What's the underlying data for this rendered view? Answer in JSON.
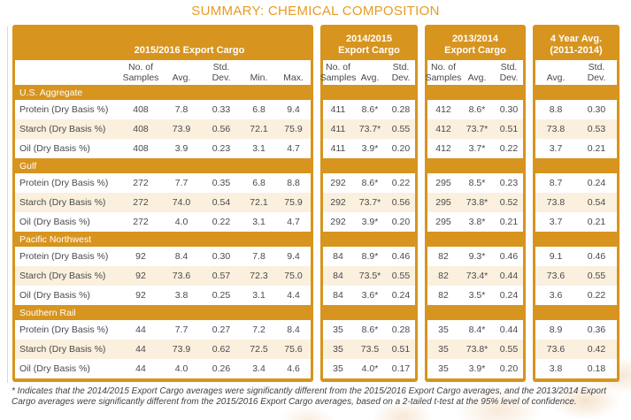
{
  "title": "SUMMARY: CHEMICAL COMPOSITION",
  "footnote": "* Indicates that the 2014/2015 Export Cargo averages were significantly different from the 2015/2016 Export Cargo averages, and the 2013/2014 Export Cargo averages were significantly different from the 2015/2016 Export Cargo averages, based on a 2-tailed t-test at the 95% level of confidence.",
  "colors": {
    "accent_orange": "#D7941E",
    "title_orange": "#E89B25",
    "row_alt_cream": "#FAF0DD",
    "text_gray": "#4A4A4C"
  },
  "table": {
    "groups": [
      {
        "name": "2015-2016-export-cargo",
        "header_lines": [
          "2015/2016 Export Cargo"
        ],
        "columns": [
          [
            "No. of",
            "Samples"
          ],
          [
            "Avg."
          ],
          [
            "Std.",
            "Dev."
          ],
          [
            "Min."
          ],
          [
            "Max."
          ]
        ]
      },
      {
        "name": "2014-2015-export-cargo",
        "header_lines": [
          "2014/2015",
          "Export Cargo"
        ],
        "columns": [
          [
            "No. of",
            "Samples"
          ],
          [
            "Avg."
          ],
          [
            "Std.",
            "Dev."
          ]
        ]
      },
      {
        "name": "2013-2014-export-cargo",
        "header_lines": [
          "2013/2014",
          "Export Cargo"
        ],
        "columns": [
          [
            "No. of",
            "Samples"
          ],
          [
            "Avg."
          ],
          [
            "Std.",
            "Dev."
          ]
        ]
      },
      {
        "name": "4-year-avg-2011-2014",
        "header_lines": [
          "4 Year Avg.",
          "(2011-2014)"
        ],
        "columns": [
          [
            "Avg."
          ],
          [
            "Std.",
            "Dev."
          ]
        ]
      }
    ],
    "sections": [
      {
        "name": "U.S. Aggregate",
        "rows": [
          {
            "label": "Protein (Dry Basis %)",
            "g1": [
              "408",
              "7.8",
              "0.33",
              "6.8",
              "9.4"
            ],
            "g2": [
              "411",
              "8.6*",
              "0.28"
            ],
            "g3": [
              "412",
              "8.6*",
              "0.30"
            ],
            "g4": [
              "8.8",
              "0.30"
            ]
          },
          {
            "label": "Starch (Dry Basis %)",
            "g1": [
              "408",
              "73.9",
              "0.56",
              "72.1",
              "75.9"
            ],
            "g2": [
              "411",
              "73.7*",
              "0.55"
            ],
            "g3": [
              "412",
              "73.7*",
              "0.51"
            ],
            "g4": [
              "73.8",
              "0.53"
            ]
          },
          {
            "label": "Oil (Dry Basis %)",
            "g1": [
              "408",
              "3.9",
              "0.23",
              "3.1",
              "4.7"
            ],
            "g2": [
              "411",
              "3.9*",
              "0.20"
            ],
            "g3": [
              "412",
              "3.7*",
              "0.22"
            ],
            "g4": [
              "3.7",
              "0.21"
            ]
          }
        ]
      },
      {
        "name": "Gulf",
        "rows": [
          {
            "label": "Protein (Dry Basis %)",
            "g1": [
              "272",
              "7.7",
              "0.35",
              "6.8",
              "8.8"
            ],
            "g2": [
              "292",
              "8.6*",
              "0.22"
            ],
            "g3": [
              "295",
              "8.5*",
              "0.23"
            ],
            "g4": [
              "8.7",
              "0.24"
            ]
          },
          {
            "label": "Starch (Dry Basis %)",
            "g1": [
              "272",
              "74.0",
              "0.54",
              "72.1",
              "75.9"
            ],
            "g2": [
              "292",
              "73.7*",
              "0.56"
            ],
            "g3": [
              "295",
              "73.8*",
              "0.52"
            ],
            "g4": [
              "73.8",
              "0.54"
            ]
          },
          {
            "label": "Oil (Dry Basis %)",
            "g1": [
              "272",
              "4.0",
              "0.22",
              "3.1",
              "4.7"
            ],
            "g2": [
              "292",
              "3.9*",
              "0.20"
            ],
            "g3": [
              "295",
              "3.8*",
              "0.21"
            ],
            "g4": [
              "3.7",
              "0.21"
            ]
          }
        ]
      },
      {
        "name": "Pacific Northwest",
        "rows": [
          {
            "label": "Protein (Dry Basis %)",
            "g1": [
              "92",
              "8.4",
              "0.30",
              "7.8",
              "9.4"
            ],
            "g2": [
              "84",
              "8.9*",
              "0.46"
            ],
            "g3": [
              "82",
              "9.3*",
              "0.46"
            ],
            "g4": [
              "9.1",
              "0.46"
            ]
          },
          {
            "label": "Starch (Dry Basis %)",
            "g1": [
              "92",
              "73.6",
              "0.57",
              "72.3",
              "75.0"
            ],
            "g2": [
              "84",
              "73.5*",
              "0.55"
            ],
            "g3": [
              "82",
              "73.4*",
              "0.44"
            ],
            "g4": [
              "73.6",
              "0.55"
            ]
          },
          {
            "label": "Oil (Dry Basis %)",
            "g1": [
              "92",
              "3.8",
              "0.25",
              "3.1",
              "4.4"
            ],
            "g2": [
              "84",
              "3.6*",
              "0.24"
            ],
            "g3": [
              "82",
              "3.5*",
              "0.24"
            ],
            "g4": [
              "3.6",
              "0.22"
            ]
          }
        ]
      },
      {
        "name": "Southern Rail",
        "rows": [
          {
            "label": "Protein (Dry Basis %)",
            "g1": [
              "44",
              "7.7",
              "0.27",
              "7.2",
              "8.4"
            ],
            "g2": [
              "35",
              "8.6*",
              "0.28"
            ],
            "g3": [
              "35",
              "8.4*",
              "0.44"
            ],
            "g4": [
              "8.9",
              "0.36"
            ]
          },
          {
            "label": "Starch (Dry Basis %)",
            "g1": [
              "44",
              "73.9",
              "0.62",
              "72.5",
              "75.6"
            ],
            "g2": [
              "35",
              "73.5",
              "0.51"
            ],
            "g3": [
              "35",
              "73.8*",
              "0.55"
            ],
            "g4": [
              "73.6",
              "0.42"
            ]
          },
          {
            "label": "Oil (Dry Basis %)",
            "g1": [
              "44",
              "4.0",
              "0.26",
              "3.4",
              "4.6"
            ],
            "g2": [
              "35",
              "4.0*",
              "0.17"
            ],
            "g3": [
              "35",
              "3.9*",
              "0.20"
            ],
            "g4": [
              "3.8",
              "0.18"
            ]
          }
        ]
      }
    ]
  }
}
